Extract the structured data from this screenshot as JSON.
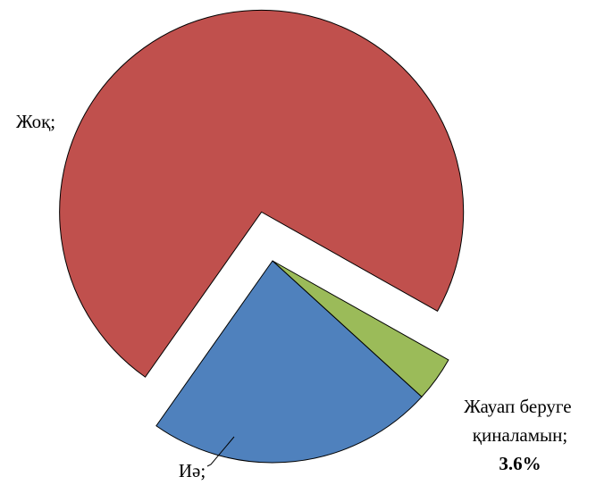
{
  "chart_data": {
    "type": "pie",
    "categories": [
      "Жоқ;",
      "Иә;",
      "Жауап беруге қиналамын;"
    ],
    "values": [
      73.4,
      23,
      3.6
    ],
    "value_labels": [
      null,
      null,
      "3.6%"
    ],
    "colors": [
      "#c0504d",
      "#4f81bd",
      "#9bbb59"
    ]
  }
}
